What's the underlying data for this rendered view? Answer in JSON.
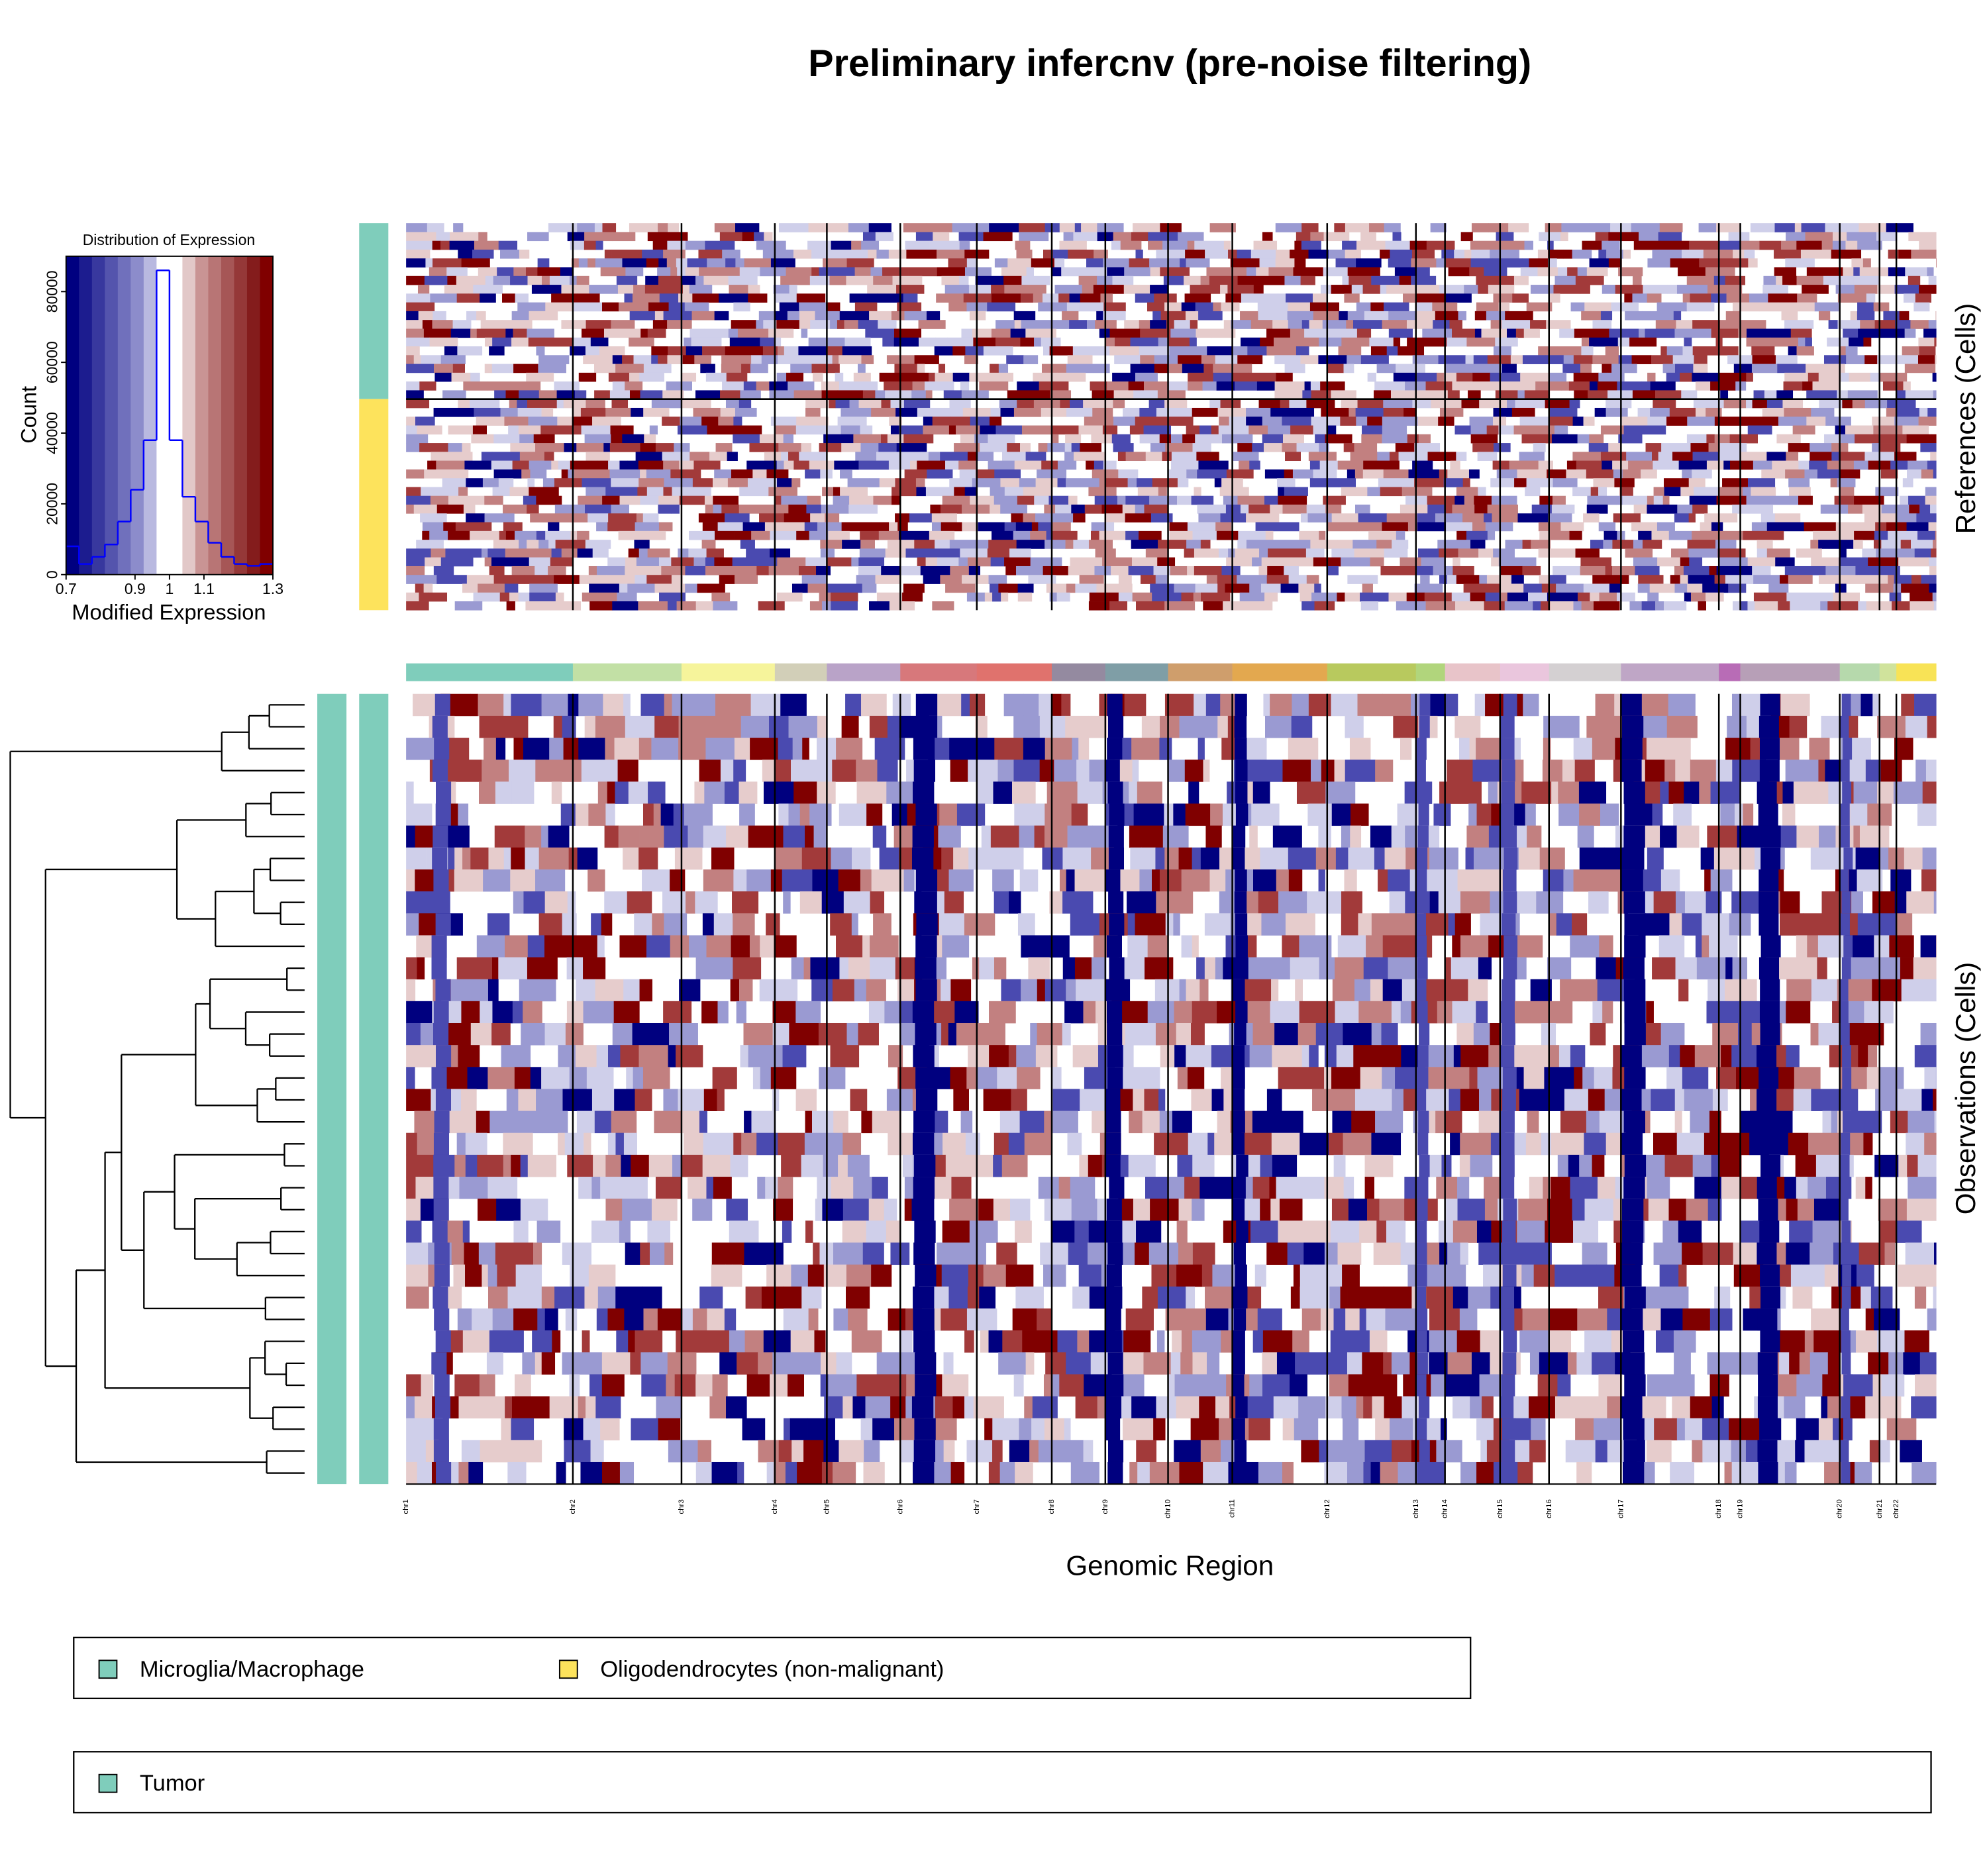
{
  "title": "Preliminary infercnv (pre-noise filtering)",
  "chart_data": {
    "type": "histogram",
    "title": "Distribution of Expression",
    "x_label": "Modified Expression",
    "y_label": "Count",
    "bins": [
      0.7,
      0.7375,
      0.775,
      0.8125,
      0.85,
      0.8875,
      0.925,
      0.9625,
      1.0,
      1.0375,
      1.075,
      1.1125,
      1.15,
      1.1875,
      1.225,
      1.2625,
      1.3
    ],
    "values": [
      8000,
      3000,
      5000,
      8500,
      15000,
      24000,
      38000,
      86000,
      38000,
      22000,
      15000,
      9000,
      5000,
      3000,
      2500,
      3000
    ],
    "color": "#0000ff",
    "band_colors": [
      "#000080",
      "#1c1c8f",
      "#38389e",
      "#5454ad",
      "#7070bc",
      "#8c8ccb",
      "#b9b9e0",
      "#ffffff",
      "#ffffff",
      "#e2c8c8",
      "#c99494",
      "#b87575",
      "#a65656",
      "#953838",
      "#841c1c",
      "#800000"
    ],
    "xlim": [
      0.7,
      1.3
    ],
    "xticks": [
      0.7,
      0.9,
      1,
      1.1,
      1.3
    ],
    "ylim": [
      0,
      90000
    ],
    "yticks": [
      0,
      20000,
      40000,
      60000,
      80000
    ]
  },
  "heatmap": {
    "references_label": "References (Cells)",
    "observations_label": "Observations (Cells)",
    "x_label": "Genomic Region",
    "xlim": [
      0,
      1
    ],
    "chromosomes": [
      {
        "name": "chr1",
        "start": 0,
        "color": "#7fcdbb"
      },
      {
        "name": "chr2",
        "start": 0.109,
        "color": "#c2e0a5"
      },
      {
        "name": "chr3",
        "start": 0.18,
        "color": "#f6f49b"
      },
      {
        "name": "chr4",
        "start": 0.241,
        "color": "#d2cfb8"
      },
      {
        "name": "chr5",
        "start": 0.275,
        "color": "#b9a3c8"
      },
      {
        "name": "chr6",
        "start": 0.323,
        "color": "#d7787b"
      },
      {
        "name": "chr7",
        "start": 0.373,
        "color": "#e0726d"
      },
      {
        "name": "chr8",
        "start": 0.422,
        "color": "#948aa0"
      },
      {
        "name": "chr9",
        "start": 0.457,
        "color": "#7f9ea6"
      },
      {
        "name": "chr10",
        "start": 0.498,
        "color": "#cf9e6c"
      },
      {
        "name": "chr11",
        "start": 0.54,
        "color": "#e3a84f"
      },
      {
        "name": "chr12",
        "start": 0.602,
        "color": "#b8c95e"
      },
      {
        "name": "chr13",
        "start": 0.66,
        "color": "#b1d57c"
      },
      {
        "name": "chr14",
        "start": 0.679,
        "color": "#e8c4c9"
      },
      {
        "name": "chr15",
        "start": 0.715,
        "color": "#eac6dd"
      },
      {
        "name": "chr16",
        "start": 0.747,
        "color": "#d4d0d2"
      },
      {
        "name": "chr17",
        "start": 0.794,
        "color": "#bfa6c6"
      },
      {
        "name": "chr18",
        "start": 0.858,
        "color": "#b86cb6"
      },
      {
        "name": "chr19",
        "start": 0.872,
        "color": "#b79fb7"
      },
      {
        "name": "chr20",
        "start": 0.937,
        "color": "#b6d9ac"
      },
      {
        "name": "chr21",
        "start": 0.963,
        "color": "#d0e39c"
      },
      {
        "name": "chr22",
        "start": 0.974,
        "color": "#f8e356"
      }
    ],
    "reference_groups": [
      {
        "name": "Microglia/Macrophage",
        "color": "#7fcdbb",
        "cells": 20
      },
      {
        "name": "Oligodendrocytes (non-malignant)",
        "color": "#fde35c",
        "cells": 24
      }
    ],
    "observation_groups": [
      {
        "name": "Tumor",
        "color": "#7fcdbb",
        "cells": 36
      }
    ]
  }
}
